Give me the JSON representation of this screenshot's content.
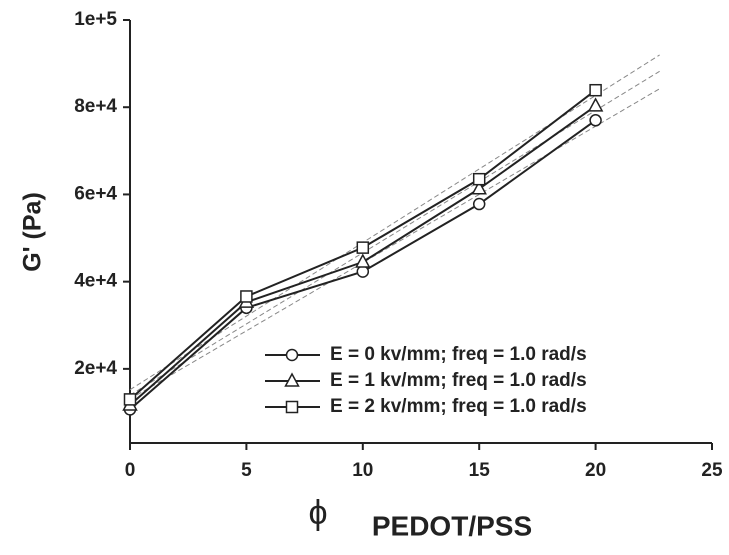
{
  "chart_data": {
    "type": "line",
    "y_label": "G' (Pa)",
    "x_label_symbol": "ϕ",
    "x_label": "PEDOT/PSS",
    "x": [
      0,
      5,
      10,
      15,
      20
    ],
    "series": [
      {
        "name": "E = 0 kv/mm; freq = 1.0 rad/s",
        "marker": "circle",
        "color": "#222222",
        "values": [
          10700,
          34000,
          42300,
          57800,
          77000
        ]
      },
      {
        "name": "E = 1 kv/mm; freq = 1.0 rad/s",
        "marker": "triangle",
        "color": "#222222",
        "values": [
          11700,
          35300,
          44500,
          61300,
          80300
        ]
      },
      {
        "name": "E = 2 kv/mm; freq = 1.0 rad/s",
        "marker": "square",
        "color": "#222222",
        "values": [
          13000,
          36600,
          47800,
          63500,
          83900
        ]
      }
    ],
    "xlim": [
      0,
      25
    ],
    "xticks": [
      0,
      5,
      10,
      15,
      20,
      25
    ],
    "ylim": [
      3000,
      100000
    ],
    "yticks": [
      {
        "value": 20000,
        "label": "2e+4"
      },
      {
        "value": 40000,
        "label": "4e+4"
      },
      {
        "value": 60000,
        "label": "6e+4"
      },
      {
        "value": 80000,
        "label": "8e+4"
      },
      {
        "value": 100000,
        "label": "1e+5"
      }
    ],
    "legend": "lower right",
    "grid": false
  }
}
